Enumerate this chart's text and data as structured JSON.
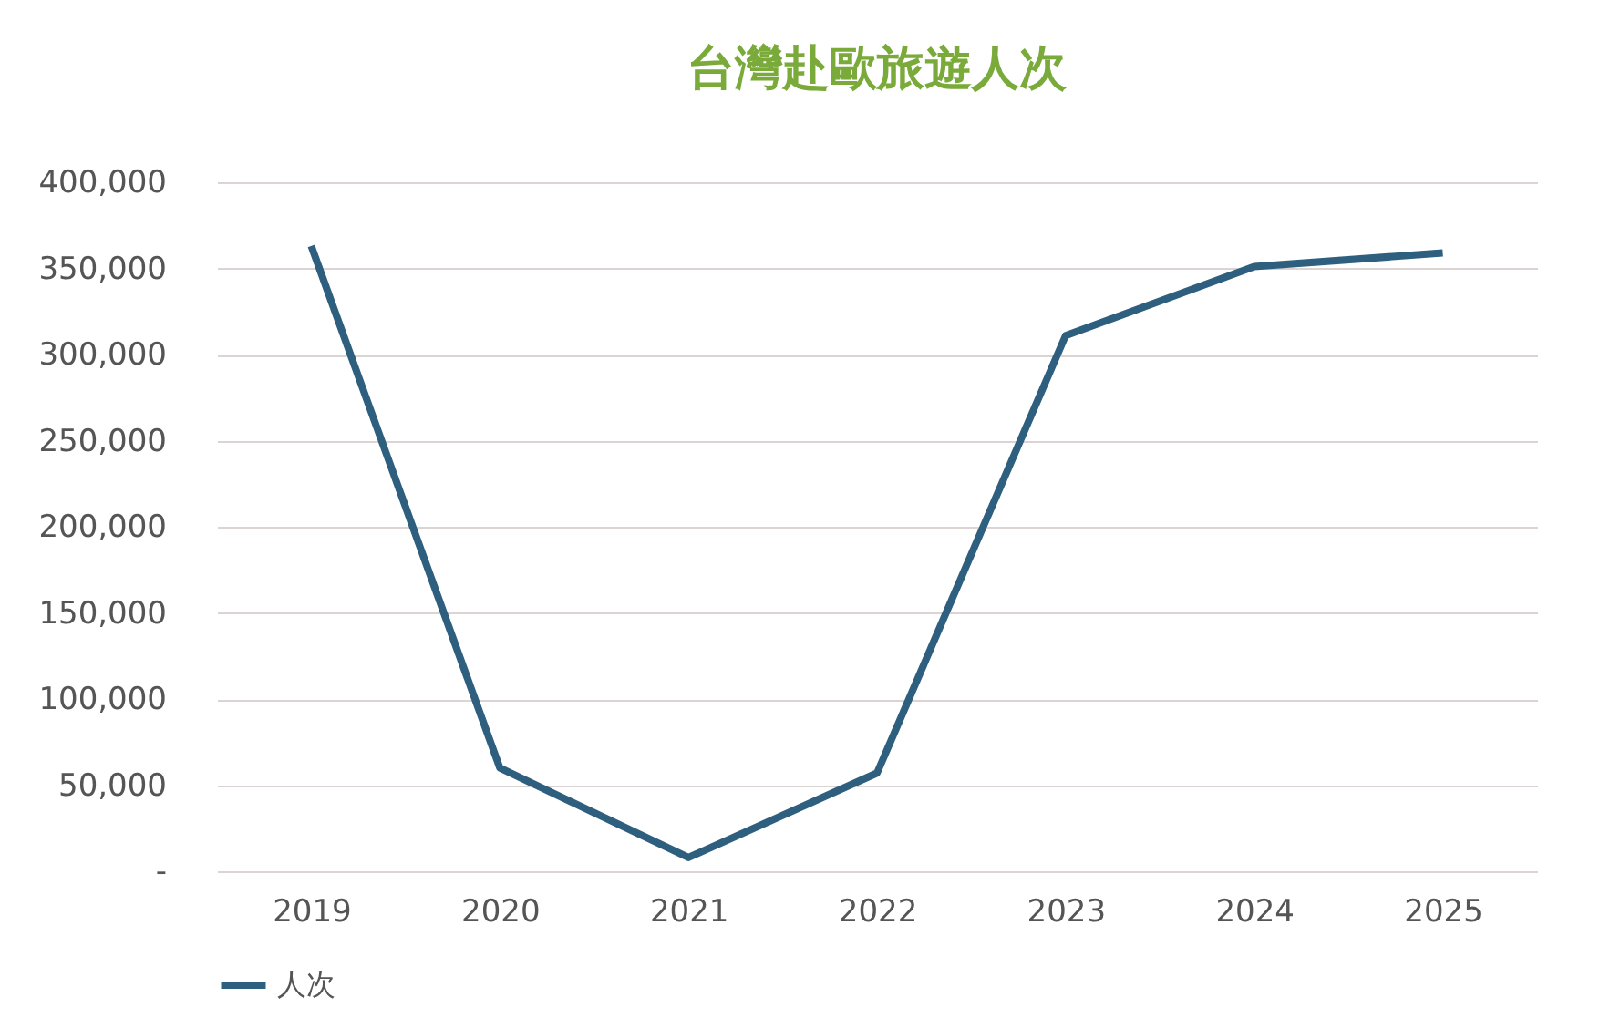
{
  "chart_data": {
    "type": "line",
    "title": "台灣赴歐旅遊人次",
    "categories": [
      "2019",
      "2020",
      "2021",
      "2022",
      "2023",
      "2024",
      "2025"
    ],
    "series": [
      {
        "name": "人次",
        "color": "#2e5f7f",
        "values": [
          363000,
          60000,
          8000,
          57000,
          311000,
          351000,
          359000
        ]
      }
    ],
    "ylim": [
      0,
      400000
    ],
    "yticks": [
      {
        "value": 0,
        "label": "-"
      },
      {
        "value": 50000,
        "label": "50,000"
      },
      {
        "value": 100000,
        "label": "100,000"
      },
      {
        "value": 150000,
        "label": "150,000"
      },
      {
        "value": 200000,
        "label": "200,000"
      },
      {
        "value": 250000,
        "label": "250,000"
      },
      {
        "value": 300000,
        "label": "300,000"
      },
      {
        "value": 350000,
        "label": "350,000"
      },
      {
        "value": 400000,
        "label": "400,000"
      }
    ],
    "grid": "y",
    "legend": "bottom",
    "marker": "none",
    "line_style": "solid"
  }
}
